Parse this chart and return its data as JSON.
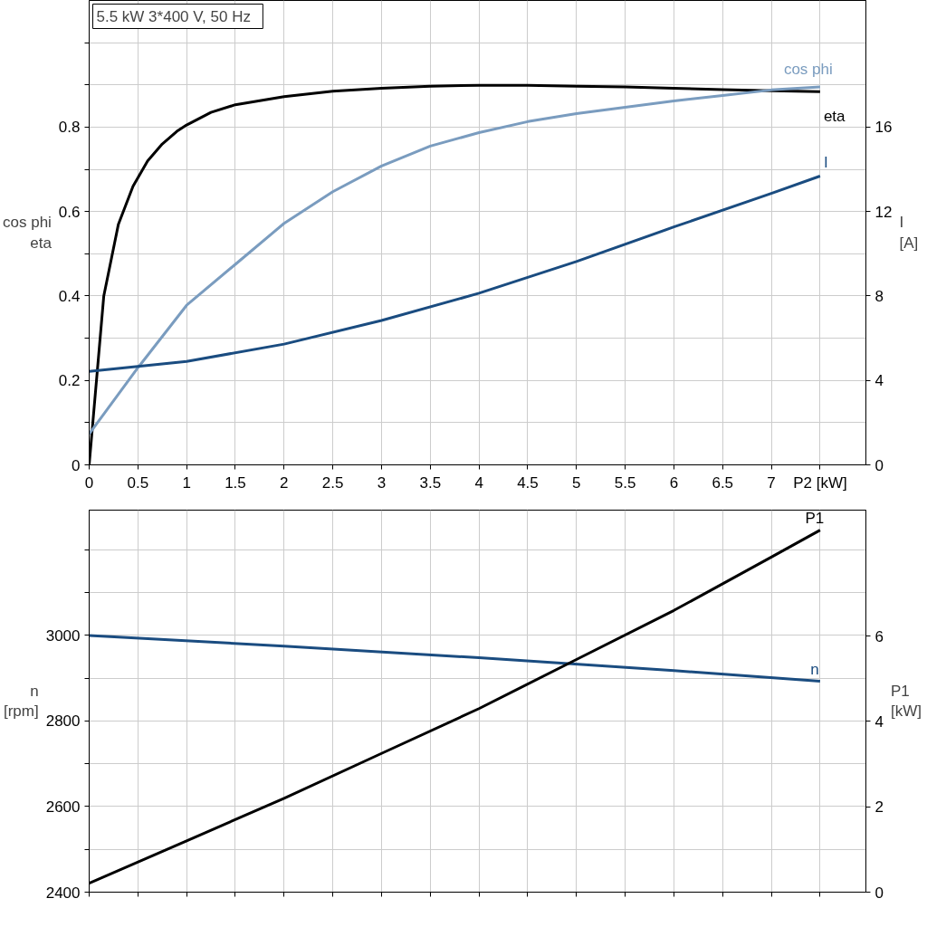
{
  "chart_data": [
    {
      "type": "line",
      "title": "5.5 kW   3*400 V, 50 Hz",
      "ylabel": "cos phi\neta",
      "y2label": "I\n[A]",
      "grid": true,
      "xlim": [
        0,
        7.97
      ],
      "xticks": [
        0,
        0.5,
        1.0,
        1.5,
        2.0,
        2.5,
        3.0,
        3.5,
        4.0,
        4.5,
        5.0,
        5.5,
        6.0,
        6.5,
        7.0,
        {
          "value": 7.5,
          "label": "P2 [kW]"
        }
      ],
      "ylim": [
        0,
        1.1
      ],
      "yticks": [
        0.0,
        {
          "value": 0.1,
          "label": null
        },
        0.2,
        {
          "value": 0.3,
          "label": null
        },
        0.4,
        {
          "value": 0.5,
          "label": null
        },
        0.6,
        {
          "value": 0.7,
          "label": null
        },
        0.8,
        {
          "value": 0.9,
          "label": null
        },
        {
          "value": 1.0,
          "label": null
        }
      ],
      "y2lim": [
        0,
        22
      ],
      "y2ticks": [
        0,
        4,
        8,
        12,
        16
      ],
      "series": [
        {
          "name": "eta",
          "color": "#000000",
          "x": [
            0,
            0.15,
            0.3,
            0.45,
            0.6,
            0.75,
            0.9,
            1.0,
            1.25,
            1.5,
            2.0,
            2.5,
            3.0,
            3.5,
            4.0,
            4.5,
            5.0,
            5.5,
            6.0,
            6.5,
            7.0,
            7.5
          ],
          "values": [
            0,
            0.4,
            0.57,
            0.66,
            0.72,
            0.76,
            0.79,
            0.805,
            0.835,
            0.853,
            0.872,
            0.885,
            0.892,
            0.897,
            0.899,
            0.899,
            0.897,
            0.895,
            0.892,
            0.889,
            0.886,
            0.884
          ]
        },
        {
          "name": "cos phi",
          "color": "#7a9cbf",
          "x": [
            0,
            0.5,
            1.0,
            1.5,
            2.0,
            2.5,
            3.0,
            3.5,
            4.0,
            4.5,
            5.0,
            5.5,
            6.0,
            6.5,
            7.0,
            7.5
          ],
          "values": [
            0.073,
            0.23,
            0.378,
            0.475,
            0.572,
            0.647,
            0.708,
            0.755,
            0.787,
            0.813,
            0.832,
            0.847,
            0.862,
            0.875,
            0.888,
            0.895
          ]
        },
        {
          "name": "I",
          "color": "#1a4c80",
          "axis": "y2",
          "x": [
            0,
            1,
            2,
            3,
            4,
            5,
            6,
            7,
            7.5
          ],
          "values": [
            4.43,
            4.9,
            5.72,
            6.84,
            8.13,
            9.63,
            11.27,
            12.86,
            13.68
          ]
        }
      ]
    },
    {
      "type": "line",
      "ylabel": "n\n[rpm]",
      "y2label": "P1\n[kW]",
      "grid": true,
      "tick_labels": "y",
      "xlim": [
        0,
        7.97
      ],
      "xticks": [
        0,
        0.5,
        1.0,
        1.5,
        2.0,
        2.5,
        3.0,
        3.5,
        4.0,
        4.5,
        5.0,
        5.5,
        6.0,
        6.5,
        7.0,
        7.5
      ],
      "ylim": [
        2400,
        3293
      ],
      "yticks": [
        2400,
        {
          "value": 2500,
          "label": null
        },
        2600,
        {
          "value": 2700,
          "label": null
        },
        2800,
        {
          "value": 2900,
          "label": null
        },
        3000,
        {
          "value": 3100,
          "label": null
        },
        {
          "value": 3200,
          "label": null
        }
      ],
      "y2lim": [
        0,
        8.95
      ],
      "y2ticks": [
        0,
        2,
        4,
        6
      ],
      "series": [
        {
          "name": "n",
          "color": "#1a4c80",
          "x": [
            0,
            2,
            4,
            6,
            7.5
          ],
          "values": [
            3000,
            2975,
            2948,
            2918,
            2893
          ]
        },
        {
          "name": "P1",
          "color": "#000000",
          "axis": "y2",
          "x": [
            0,
            1,
            2,
            3,
            4,
            5,
            6,
            7,
            7.5
          ],
          "values": [
            0.21,
            1.2,
            2.2,
            3.25,
            4.3,
            5.45,
            6.6,
            7.85,
            8.48
          ]
        }
      ]
    }
  ]
}
